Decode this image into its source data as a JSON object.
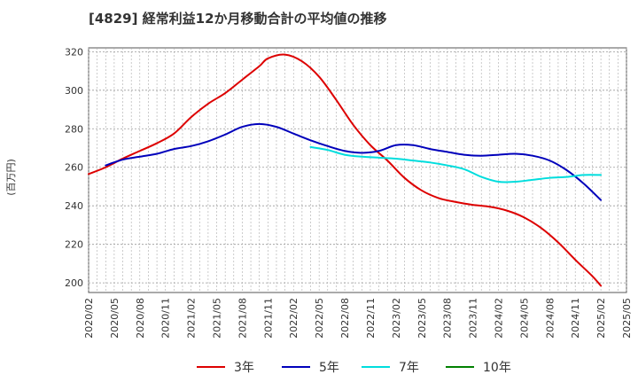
{
  "chart_data": {
    "type": "line",
    "title": "[4829]  経常利益12か月移動合計の平均値の推移",
    "ylabel": "(百万円)",
    "xlabel": "",
    "ylim": [
      195,
      322
    ],
    "yticks": [
      200,
      220,
      240,
      260,
      280,
      300,
      320
    ],
    "x_tick_labels": [
      "2020/02",
      "2020/05",
      "2020/08",
      "2020/11",
      "2021/02",
      "2021/05",
      "2021/08",
      "2021/11",
      "2022/02",
      "2022/05",
      "2022/08",
      "2022/11",
      "2023/02",
      "2023/05",
      "2023/08",
      "2023/11",
      "2024/02",
      "2024/05",
      "2024/08",
      "2024/11",
      "2025/02",
      "2025/05"
    ],
    "grid": true,
    "legend_position": "bottom",
    "series": [
      {
        "name": "3年",
        "color": "#dd0000",
        "points": [
          [
            "2020/02",
            256.5
          ],
          [
            "2020/04",
            260
          ],
          [
            "2020/06",
            264.5
          ],
          [
            "2020/08",
            268.5
          ],
          [
            "2020/10",
            272.5
          ],
          [
            "2020/12",
            277.5
          ],
          [
            "2021/02",
            286
          ],
          [
            "2021/04",
            293
          ],
          [
            "2021/06",
            298.5
          ],
          [
            "2021/08",
            305.5
          ],
          [
            "2021/10",
            312.5
          ],
          [
            "2021/11",
            316.5
          ],
          [
            "2022/01",
            318.5
          ],
          [
            "2022/03",
            315
          ],
          [
            "2022/05",
            307
          ],
          [
            "2022/07",
            295
          ],
          [
            "2022/09",
            282
          ],
          [
            "2022/11",
            271.5
          ],
          [
            "2023/01",
            263.5
          ],
          [
            "2023/03",
            254.5
          ],
          [
            "2023/05",
            248
          ],
          [
            "2023/07",
            244
          ],
          [
            "2023/09",
            242
          ],
          [
            "2023/11",
            240.5
          ],
          [
            "2024/01",
            239.5
          ],
          [
            "2024/03",
            237.5
          ],
          [
            "2024/05",
            234
          ],
          [
            "2024/07",
            228.5
          ],
          [
            "2024/09",
            221
          ],
          [
            "2024/11",
            212
          ],
          [
            "2025/01",
            203.5
          ],
          [
            "2025/02",
            198.5
          ]
        ]
      },
      {
        "name": "5年",
        "color": "#0000bb",
        "points": [
          [
            "2020/04",
            261
          ],
          [
            "2020/06",
            264
          ],
          [
            "2020/08",
            265.5
          ],
          [
            "2020/10",
            267
          ],
          [
            "2020/12",
            269.5
          ],
          [
            "2021/02",
            271
          ],
          [
            "2021/04",
            273.5
          ],
          [
            "2021/06",
            277
          ],
          [
            "2021/08",
            281
          ],
          [
            "2021/10",
            282.5
          ],
          [
            "2021/12",
            281
          ],
          [
            "2022/02",
            277.5
          ],
          [
            "2022/04",
            274
          ],
          [
            "2022/06",
            271
          ],
          [
            "2022/08",
            268.5
          ],
          [
            "2022/10",
            267.5
          ],
          [
            "2022/12",
            268.5
          ],
          [
            "2023/02",
            271.5
          ],
          [
            "2023/04",
            271.5
          ],
          [
            "2023/06",
            269.5
          ],
          [
            "2023/08",
            268
          ],
          [
            "2023/10",
            266.5
          ],
          [
            "2023/12",
            266
          ],
          [
            "2024/02",
            266.5
          ],
          [
            "2024/04",
            267
          ],
          [
            "2024/06",
            266
          ],
          [
            "2024/08",
            263.5
          ],
          [
            "2024/10",
            258.5
          ],
          [
            "2024/12",
            251.5
          ],
          [
            "2025/02",
            243
          ]
        ]
      },
      {
        "name": "7年",
        "color": "#00dddd",
        "points": [
          [
            "2022/04",
            270.5
          ],
          [
            "2022/06",
            269
          ],
          [
            "2022/08",
            266.5
          ],
          [
            "2022/10",
            265.5
          ],
          [
            "2022/12",
            265
          ],
          [
            "2023/02",
            264.5
          ],
          [
            "2023/04",
            263.5
          ],
          [
            "2023/06",
            262.5
          ],
          [
            "2023/08",
            261
          ],
          [
            "2023/10",
            259
          ],
          [
            "2023/12",
            255
          ],
          [
            "2024/02",
            252.5
          ],
          [
            "2024/04",
            252.5
          ],
          [
            "2024/06",
            253.5
          ],
          [
            "2024/08",
            254.5
          ],
          [
            "2024/10",
            255
          ],
          [
            "2024/12",
            256
          ],
          [
            "2025/02",
            256
          ]
        ]
      },
      {
        "name": "10年",
        "color": "#008000",
        "points": []
      }
    ]
  }
}
